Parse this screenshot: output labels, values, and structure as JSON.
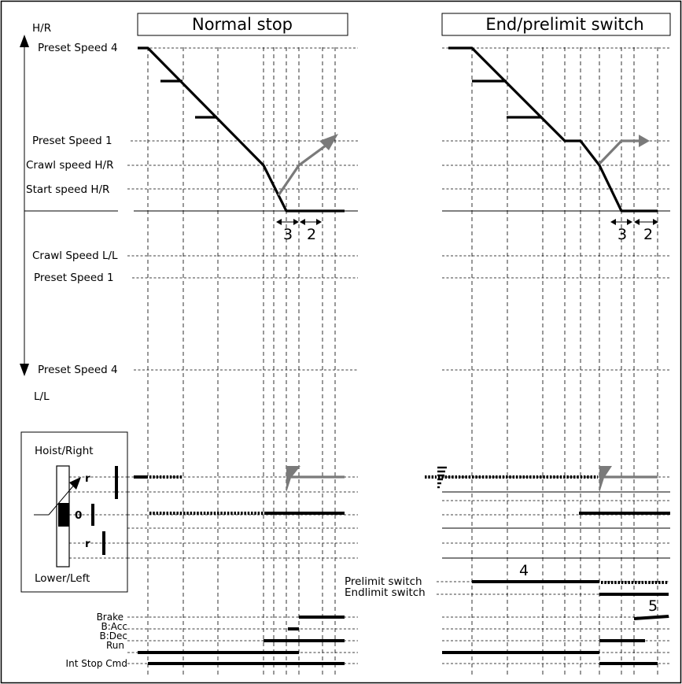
{
  "titles": {
    "normal_stop": "Normal stop",
    "end_prelimit": "End/prelimit switch"
  },
  "axis": {
    "top": "H/R",
    "bottom": "L/L"
  },
  "speed_labels": {
    "preset4_hr": "Preset Speed 4",
    "preset1_hr": "Preset Speed 1",
    "crawl_hr": "Crawl speed H/R",
    "start_hr": "Start speed H/R",
    "crawl_ll": "Crawl Speed L/L",
    "preset1_ll": "Preset Speed 1",
    "preset4_ll": "Preset Speed 4"
  },
  "markers": {
    "n3": "3",
    "n2": "2",
    "n4": "4",
    "n5": "5"
  },
  "joystick": {
    "hoist_right": "Hoist/Right",
    "lower_left": "Lower/Left",
    "r_top": "r",
    "zero": "0",
    "r_bottom": "r"
  },
  "switch_labels": {
    "prelimit": "Prelimit switch",
    "endlimit": "Endlimit switch"
  },
  "signals": {
    "brake": "Brake",
    "bacc": "B:Acc",
    "bdec": "B:Dec",
    "run": "Run",
    "int_stop": "Int Stop Cmd"
  },
  "colors": {
    "line": "#000000",
    "highlight": "#7a7a7a"
  }
}
